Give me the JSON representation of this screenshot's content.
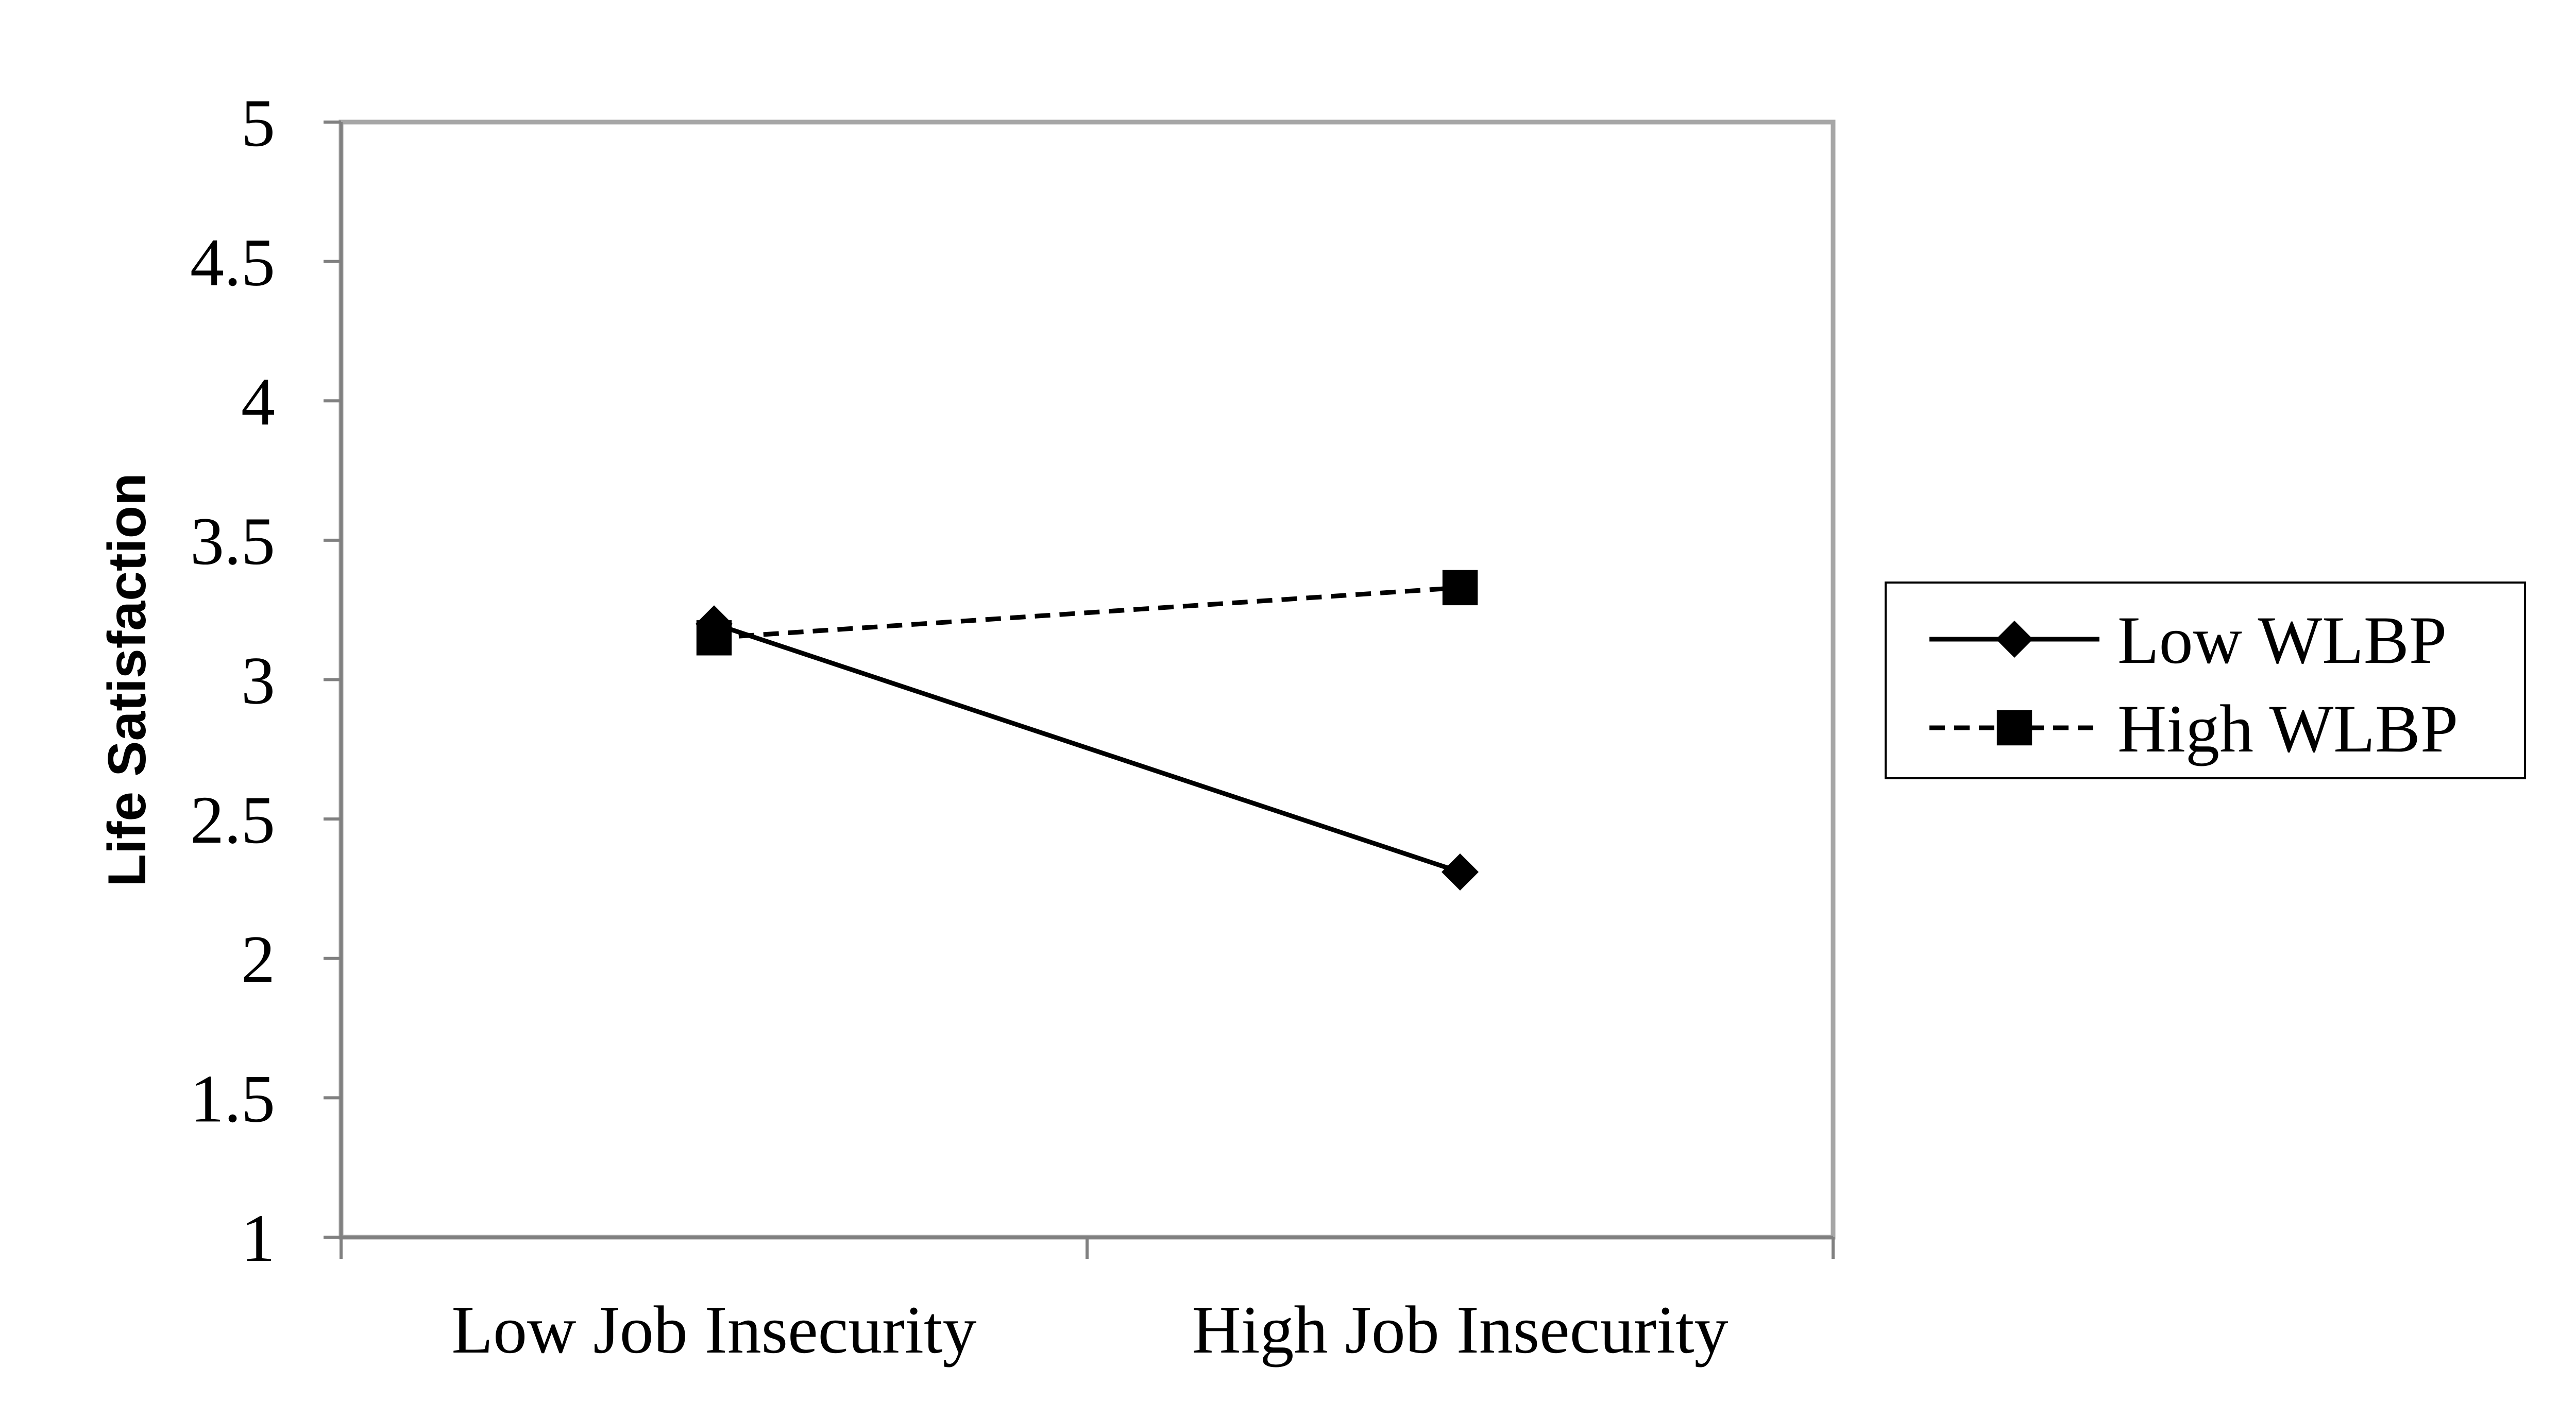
{
  "chart_data": {
    "type": "line",
    "title": "",
    "xlabel": "",
    "ylabel": "Life Satisfaction",
    "categories": [
      "Low Job Insecurity",
      "High Job Insecurity"
    ],
    "ylim": [
      1,
      5
    ],
    "yticks": [
      "1",
      "1.5",
      "2",
      "2.5",
      "3",
      "3.5",
      "4",
      "4.5",
      "5"
    ],
    "grid": false,
    "legend_position": "right",
    "series": [
      {
        "name": "Low WLBP",
        "values": [
          3.2,
          2.31
        ],
        "line_style": "solid",
        "marker": "diamond",
        "color": "#000000"
      },
      {
        "name": "High WLBP",
        "values": [
          3.15,
          3.33
        ],
        "line_style": "dashed",
        "marker": "square",
        "color": "#000000"
      }
    ],
    "colors": {
      "plot_border": "#a6a6a6",
      "axis": "#808080"
    }
  }
}
